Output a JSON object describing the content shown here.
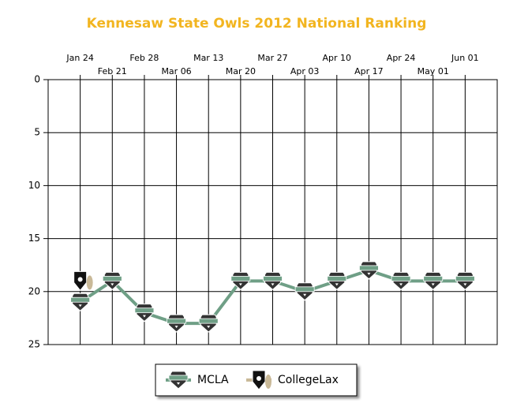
{
  "chart_data": {
    "type": "line",
    "title": "Kennesaw State Owls 2012 National Ranking",
    "categories": [
      "Jan 24",
      "Feb 21",
      "Feb 28",
      "Mar 06",
      "Mar 13",
      "Mar 20",
      "Mar 27",
      "Apr 03",
      "Apr 10",
      "Apr 17",
      "Apr 24",
      "May 01",
      "Jun 01"
    ],
    "series": [
      {
        "name": "MCLA",
        "color": "#6f9f86",
        "values": [
          21,
          19,
          22,
          23,
          23,
          19,
          19,
          20,
          19,
          18,
          19,
          19,
          19
        ]
      },
      {
        "name": "CollegeLax",
        "color": "#c9b998",
        "values": [
          19,
          null,
          null,
          null,
          null,
          null,
          null,
          null,
          null,
          null,
          null,
          null,
          null
        ]
      }
    ],
    "ylim": [
      0,
      25
    ],
    "yticks": [
      0,
      5,
      10,
      15,
      20,
      25
    ],
    "y_reversed": true,
    "grid": true
  }
}
